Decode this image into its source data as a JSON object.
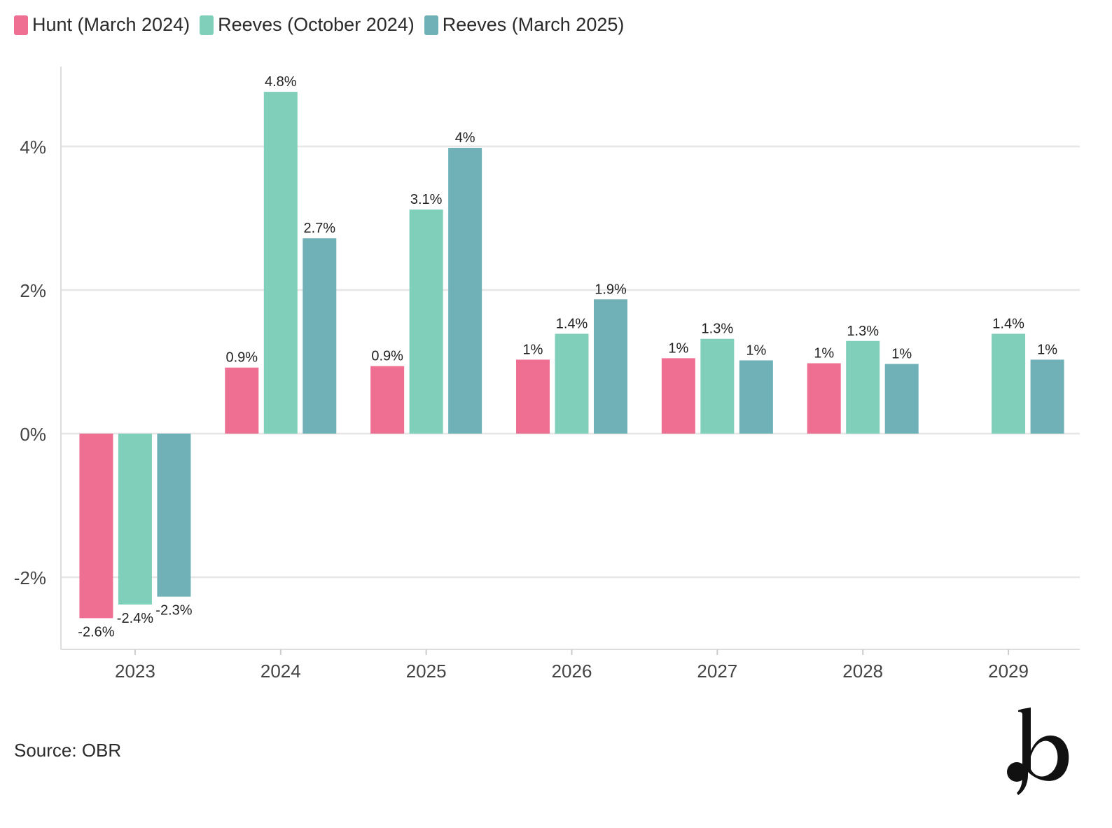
{
  "legend": {
    "items": [
      {
        "label": "Hunt (March 2024)",
        "color": "#EE6F91"
      },
      {
        "label": "Reeves (October 2024)",
        "color": "#80CFBA"
      },
      {
        "label": "Reeves (March 2025)",
        "color": "#6FB1B7"
      }
    ]
  },
  "footer": {
    "source": "Source: OBR",
    "logo_icon": "b-logo-icon"
  },
  "chart_data": {
    "type": "bar",
    "categories": [
      "2023",
      "2024",
      "2025",
      "2026",
      "2027",
      "2028",
      "2029"
    ],
    "series": [
      {
        "name": "Hunt (March 2024)",
        "color": "#EE6F91",
        "values": [
          -2.57,
          0.92,
          0.94,
          1.03,
          1.05,
          0.98,
          null
        ],
        "labels": [
          "-2.6%",
          "0.9%",
          "0.9%",
          "1%",
          "1%",
          "1%",
          ""
        ]
      },
      {
        "name": "Reeves (October 2024)",
        "color": "#80CFBA",
        "values": [
          -2.38,
          4.76,
          3.12,
          1.39,
          1.32,
          1.29,
          1.39
        ],
        "labels": [
          "-2.4%",
          "4.8%",
          "3.1%",
          "1.4%",
          "1.3%",
          "1.3%",
          "1.4%"
        ]
      },
      {
        "name": "Reeves (March 2025)",
        "color": "#6FB1B7",
        "values": [
          -2.27,
          2.72,
          3.98,
          1.87,
          1.02,
          0.97,
          1.03
        ],
        "labels": [
          "-2.3%",
          "2.7%",
          "4%",
          "1.9%",
          "1%",
          "1%",
          "1%"
        ]
      }
    ],
    "ylim": [
      -3.0,
      5.0
    ],
    "yticks": [
      -2,
      0,
      2,
      4
    ],
    "ytick_labels": [
      "-2%",
      "0%",
      "2%",
      "4%"
    ],
    "grid": true,
    "legend_position": "top-left",
    "title": "",
    "xlabel": "",
    "ylabel": ""
  }
}
